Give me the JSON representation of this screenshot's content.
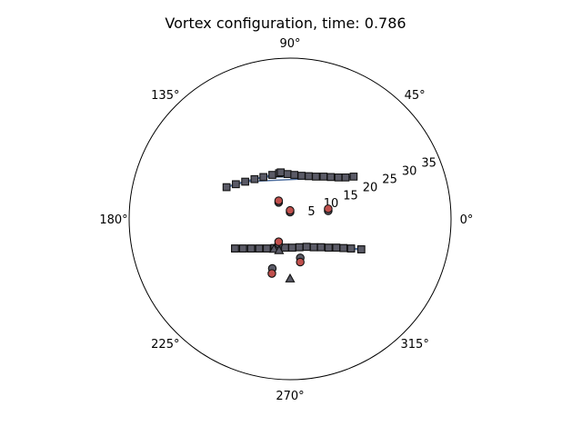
{
  "chart_data": {
    "type": "scatter",
    "projection": "polar",
    "title": "Vortex configuration, time: 0.786",
    "angle_ticks": [
      "0°",
      "45°",
      "90°",
      "135°",
      "180°",
      "225°",
      "270°",
      "315°"
    ],
    "angle_tick_values_deg": [
      0,
      45,
      90,
      135,
      180,
      225,
      270,
      315
    ],
    "radial_ticks": [
      "5",
      "10",
      "15",
      "20",
      "25",
      "30",
      "35"
    ],
    "radial_tick_values": [
      5,
      10,
      15,
      20,
      25,
      30,
      35
    ],
    "radial_label_angle_deg": 22.5,
    "rlim": [
      0,
      38
    ],
    "grid": false,
    "colors": {
      "gray_marker": "#5a5a66",
      "red_marker": "#c0504d",
      "line": "#4f6f9f",
      "edge": "#111111"
    },
    "series": [
      {
        "marker": "square",
        "color": "gray",
        "connected": true,
        "points_xy": [
          [
            -15.0,
            7.5
          ],
          [
            -12.8,
            8.2
          ],
          [
            -10.6,
            8.8
          ],
          [
            -8.4,
            9.4
          ],
          [
            -6.3,
            9.9
          ],
          [
            -4.2,
            10.4
          ],
          [
            -2.6,
            10.8
          ],
          [
            -2.2,
            11.0
          ],
          [
            -0.6,
            10.6
          ],
          [
            1.0,
            10.4
          ],
          [
            2.7,
            10.2
          ],
          [
            4.4,
            10.1
          ],
          [
            6.1,
            10.0
          ],
          [
            7.9,
            10.0
          ],
          [
            9.6,
            9.9
          ],
          [
            11.4,
            9.8
          ],
          [
            13.1,
            9.8
          ],
          [
            15.0,
            10.0
          ]
        ]
      },
      {
        "marker": "square",
        "color": "red",
        "connected": true,
        "points_xy": [
          [
            -13.0,
            -7.0
          ],
          [
            -11.1,
            -7.0
          ],
          [
            -9.2,
            -7.0
          ],
          [
            -7.3,
            -7.0
          ],
          [
            -5.5,
            -7.0
          ],
          [
            -3.7,
            -6.9
          ],
          [
            -1.2,
            -6.8
          ],
          [
            0.5,
            -6.8
          ],
          [
            2.2,
            -6.7
          ],
          [
            3.9,
            -6.6
          ],
          [
            5.6,
            -6.7
          ],
          [
            7.3,
            -6.7
          ],
          [
            9.1,
            -6.8
          ],
          [
            10.9,
            -6.8
          ],
          [
            12.6,
            -6.9
          ],
          [
            14.4,
            -7.0
          ],
          [
            16.8,
            -7.2
          ]
        ]
      },
      {
        "marker": "square",
        "color": "gray",
        "connected": true,
        "points_xy": [
          [
            -13.0,
            -7.0
          ],
          [
            -11.1,
            -7.0
          ],
          [
            -9.2,
            -7.0
          ],
          [
            -7.3,
            -7.0
          ],
          [
            -5.5,
            -7.0
          ],
          [
            -3.7,
            -6.9
          ],
          [
            -1.2,
            -6.8
          ],
          [
            0.5,
            -6.8
          ],
          [
            2.2,
            -6.7
          ],
          [
            3.9,
            -6.6
          ],
          [
            5.6,
            -6.7
          ],
          [
            7.3,
            -6.7
          ],
          [
            9.1,
            -6.8
          ],
          [
            10.9,
            -6.8
          ],
          [
            12.6,
            -6.9
          ],
          [
            14.4,
            -7.0
          ],
          [
            16.8,
            -7.2
          ]
        ]
      },
      {
        "marker": "circle",
        "color": "gray",
        "connected": false,
        "points_xy": [
          [
            -2.7,
            3.9
          ],
          [
            0.0,
            1.6
          ],
          [
            9.0,
            1.9
          ],
          [
            -2.7,
            -5.9
          ],
          [
            2.4,
            -9.2
          ],
          [
            -4.2,
            -11.7
          ]
        ]
      },
      {
        "marker": "circle",
        "color": "red",
        "connected": false,
        "points_xy": [
          [
            -2.7,
            4.3
          ],
          [
            0.0,
            2.0
          ],
          [
            9.0,
            2.4
          ],
          [
            -2.7,
            -5.4
          ],
          [
            2.4,
            -10.2
          ],
          [
            -4.3,
            -12.9
          ]
        ]
      },
      {
        "marker": "triangle",
        "color": "gray",
        "connected": false,
        "points_xy": [
          [
            -3.8,
            -7.1
          ],
          [
            -2.6,
            -7.4
          ],
          [
            0.0,
            -14.1
          ]
        ]
      }
    ]
  }
}
